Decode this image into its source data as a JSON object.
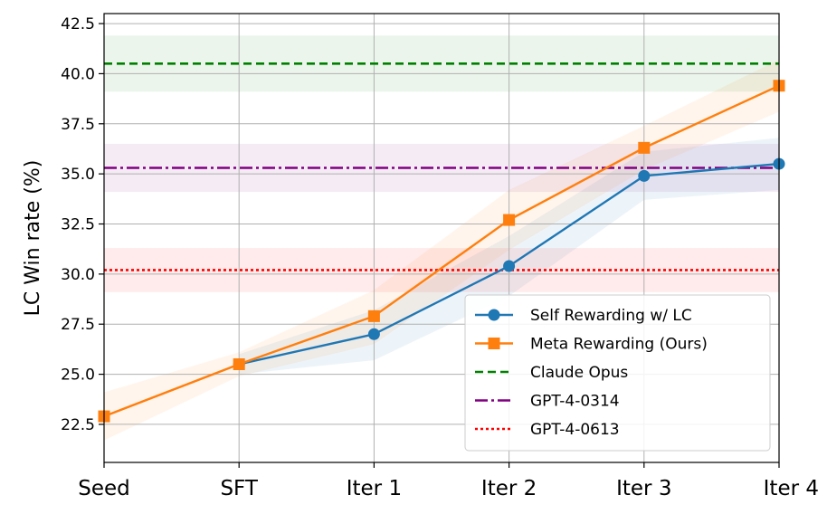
{
  "chart_data": {
    "type": "line",
    "title": "",
    "xlabel": "",
    "ylabel": "LC Win rate (%)",
    "categories": [
      "Seed",
      "SFT",
      "Iter 1",
      "Iter 2",
      "Iter 3",
      "Iter 4"
    ],
    "ylim": [
      20.6,
      43.0
    ],
    "yticks": [
      "22.5",
      "25.0",
      "27.5",
      "30.0",
      "32.5",
      "35.0",
      "37.5",
      "40.0",
      "42.5"
    ],
    "grid": true,
    "legend_position": "lower-right",
    "series": [
      {
        "name": "Self Rewarding w/ LC",
        "color": "#1f77b4",
        "marker": "circle",
        "values": [
          null,
          25.5,
          27.0,
          30.4,
          34.9,
          35.5
        ],
        "band_low": [
          null,
          25.0,
          25.7,
          28.9,
          33.7,
          34.2
        ],
        "band_high": [
          null,
          26.0,
          28.2,
          31.9,
          36.1,
          36.8
        ]
      },
      {
        "name": "Meta Rewarding (Ours)",
        "color": "#ff7f0e",
        "marker": "square",
        "values": [
          22.9,
          25.5,
          27.9,
          32.7,
          36.3,
          39.4
        ],
        "band_low": [
          21.7,
          24.9,
          26.5,
          31.2,
          35.2,
          38.1
        ],
        "band_high": [
          24.1,
          26.1,
          29.2,
          34.2,
          37.4,
          40.7
        ]
      }
    ],
    "reference_lines": [
      {
        "name": "Claude Opus",
        "value": 40.5,
        "band": [
          39.1,
          41.9
        ],
        "color": "#008000",
        "style": "dashed"
      },
      {
        "name": "GPT-4-0314",
        "value": 35.3,
        "band": [
          34.1,
          36.5
        ],
        "color": "#800080",
        "style": "dashdot"
      },
      {
        "name": "GPT-4-0613",
        "value": 30.2,
        "band": [
          29.1,
          31.3
        ],
        "color": "#ff0000",
        "style": "dotted"
      }
    ]
  }
}
